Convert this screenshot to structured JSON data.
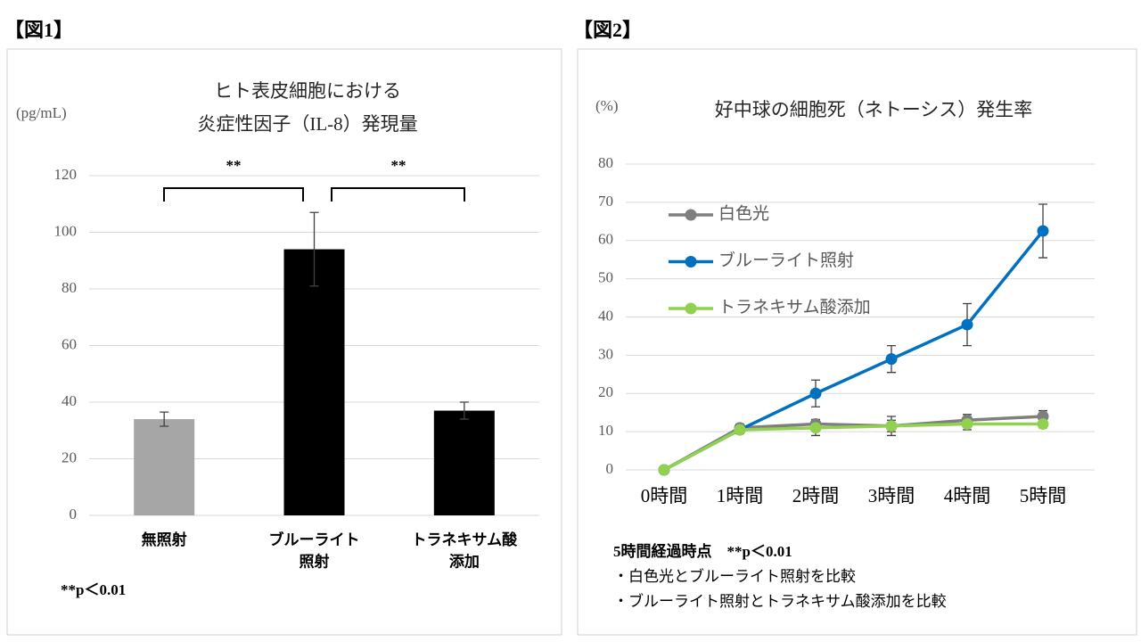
{
  "chart_data": [
    {
      "type": "bar",
      "label": "【図1】",
      "title": [
        "ヒト表皮細胞における",
        "炎症性因子（IL-8）発現量"
      ],
      "y_label": "(pg/mL)",
      "categories": [
        "無照射",
        "ブルーライト\n照射",
        "トラネキサム酸\n添加"
      ],
      "values": [
        34,
        94,
        37
      ],
      "errors": [
        2.5,
        13,
        3
      ],
      "colors": [
        "#a6a6a6",
        "#000000",
        "#000000"
      ],
      "ylim": [
        0,
        120
      ],
      "yticks": [
        0,
        20,
        40,
        60,
        80,
        100,
        120
      ],
      "grid": true,
      "annotations": [
        "**",
        "**"
      ],
      "note": "**p＜0.01"
    },
    {
      "type": "line",
      "label": "【図2】",
      "title": [
        "好中球の細胞死（ネトーシス）発生率"
      ],
      "y_label": "(%)",
      "categories": [
        "0時間",
        "1時間",
        "2時間",
        "3時間",
        "4時間",
        "5時間"
      ],
      "series": [
        {
          "name": "白色光",
          "color": "#7f7f7f",
          "values": [
            0,
            11,
            12,
            11.5,
            13,
            14
          ],
          "errors": [
            0,
            1,
            1.2,
            1.5,
            1.5,
            1.5
          ]
        },
        {
          "name": "ブルーライト照射",
          "color": "#0070c0",
          "values": [
            0,
            10.5,
            20,
            29,
            38,
            62.5
          ],
          "errors": [
            0,
            1,
            3.5,
            3.5,
            5.5,
            7
          ]
        },
        {
          "name": "トラネキサム酸添加",
          "color": "#92d050",
          "values": [
            0,
            10.5,
            11,
            11.5,
            12,
            12
          ],
          "errors": [
            0,
            1,
            2,
            2.5,
            1.5,
            1
          ]
        }
      ],
      "ylim": [
        0,
        80
      ],
      "yticks": [
        0,
        10,
        20,
        30,
        40,
        50,
        60,
        70,
        80
      ],
      "grid": true,
      "legend": "upper-left",
      "note": [
        "5時間経過時点　**p＜0.01",
        "・白色光とブルーライト照射を比較",
        "・ブルーライト照射とトラネキサム酸添加を比較"
      ]
    }
  ]
}
